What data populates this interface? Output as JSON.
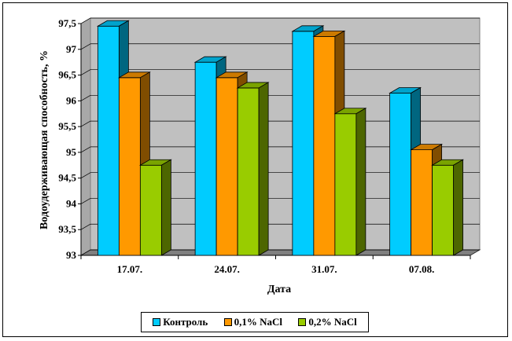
{
  "chart_data": {
    "type": "bar",
    "categories": [
      "17.07.",
      "24.07.",
      "31.07.",
      "07.08."
    ],
    "series": [
      {
        "name": "Контроль",
        "values": [
          97.45,
          96.75,
          97.35,
          96.15
        ],
        "color": "#00ccff"
      },
      {
        "name": "0,1% NaCl",
        "values": [
          96.45,
          96.45,
          97.25,
          95.05
        ],
        "color": "#ff9900"
      },
      {
        "name": "0,2% NaCl",
        "values": [
          94.75,
          96.25,
          95.75,
          94.75
        ],
        "color": "#99cc00"
      }
    ],
    "title": "",
    "xlabel": "Дата",
    "ylabel": "Водоудерживающая способность, %",
    "ylim": [
      93,
      97.5
    ],
    "yticks": [
      "93",
      "93,5",
      "94",
      "94,5",
      "95",
      "95,5",
      "96",
      "96,5",
      "97",
      "97,5"
    ],
    "grid": true,
    "legend_position": "bottom",
    "style": "3d-bar",
    "plot_background": "#c0c0c0"
  }
}
